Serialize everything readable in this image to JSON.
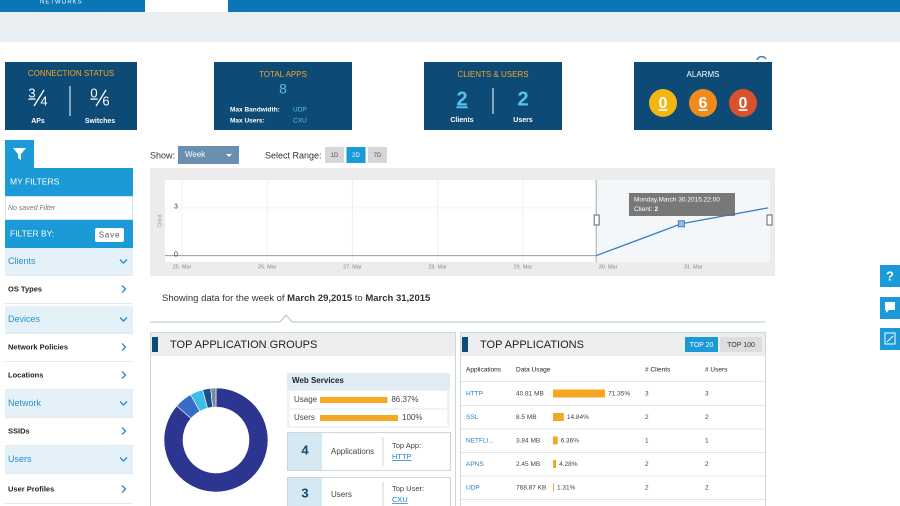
{
  "header": {
    "brand": "NETWORKS"
  },
  "tiles": {
    "connection_status": {
      "title": "CONNECTION STATUS",
      "aps": {
        "up": "3",
        "total": "4",
        "label": "APs"
      },
      "switches": {
        "up": "0",
        "total": "6",
        "label": "Switches"
      }
    },
    "total_apps": {
      "title": "TOTAL APPS",
      "count": "8",
      "max_bandwidth_label": "Max Bandwidth:",
      "max_bandwidth": "UDP",
      "max_users_label": "Max Users:",
      "max_users": "CXU"
    },
    "clients_users": {
      "title": "CLIENTS & USERS",
      "clients": "2",
      "clients_label": "Clients",
      "users": "2",
      "users_label": "Users"
    },
    "alarms": {
      "title": "ALARMS",
      "counts": [
        {
          "value": "0",
          "color": "#f4b512"
        },
        {
          "value": "6",
          "color": "#f08a1c"
        },
        {
          "value": "0",
          "color": "#d8532c"
        }
      ]
    }
  },
  "sidebar": {
    "my_filters": "MY FILTERS",
    "no_filter": "No saved Filter",
    "filter_by": "FILTER BY:",
    "save": "Save",
    "items": [
      {
        "label": "Clients",
        "group": true
      },
      {
        "label": "OS Types",
        "group": false
      },
      {
        "label": "Devices",
        "group": true
      },
      {
        "label": "Network Policies",
        "group": false
      },
      {
        "label": "Locations",
        "group": false
      },
      {
        "label": "Network",
        "group": true
      },
      {
        "label": "SSIDs",
        "group": false
      },
      {
        "label": "Users",
        "group": true
      },
      {
        "label": "User Profiles",
        "group": false
      }
    ]
  },
  "controls": {
    "show_label": "Show:",
    "period": "Week",
    "range_label": "Select Range:",
    "ranges": [
      "1D",
      "2D",
      "7D"
    ],
    "active_range": 1
  },
  "trend_chart": {
    "type": "line",
    "ylabel": "Client",
    "xlim": [
      24.8,
      31.9
    ],
    "xticks": [
      {
        "value": 25,
        "label": "25. Mar"
      },
      {
        "value": 26,
        "label": "26. Mar"
      },
      {
        "value": 27,
        "label": "27. Mar"
      },
      {
        "value": 28,
        "label": "28. Mar"
      },
      {
        "value": 29,
        "label": "29. Mar"
      },
      {
        "value": 30,
        "label": "30. Mar"
      },
      {
        "value": 31,
        "label": "31. Mar"
      }
    ],
    "ylim": [
      -0.4,
      4.75
    ],
    "yticks": [
      0,
      3
    ],
    "x": [
      29.86,
      30.86,
      31.88
    ],
    "values": [
      0,
      2,
      3
    ],
    "color": "#3a7fc8",
    "tooltip": {
      "title": "Monday,March 30.2015.22:00",
      "label": "Client:",
      "value": "2"
    }
  },
  "summary": {
    "prefix": "Showing data for the week of",
    "start": "March 29,2015",
    "middle": "to",
    "end": "March 31,2015"
  },
  "app_groups": {
    "title": "TOP APPLICATION GROUPS",
    "donut": {
      "type": "pie",
      "values": [
        86.37,
        5.5,
        4,
        2.5,
        1.63
      ],
      "colors": [
        "#2c3590",
        "#3a6cc5",
        "#3ebde8",
        "#1b4f8a",
        "#7a8a99"
      ]
    },
    "card": {
      "name": "Web Services",
      "usage_label": "Usage",
      "usage": 86.37,
      "usage_text": "86.37%",
      "users_label": "Users",
      "users": 100,
      "users_text": "100%"
    },
    "apps": {
      "count": "4",
      "label": "Applications",
      "top_label": "Top App:",
      "top": "HTTP"
    },
    "users": {
      "count": "3",
      "label": "Users",
      "top_label": "Top User:",
      "top": "CXU"
    }
  },
  "top_apps": {
    "title": "TOP APPLICATIONS",
    "buttons": [
      "TOP 20",
      "TOP 100"
    ],
    "columns": [
      "Applications",
      "Data Usage",
      "# Clients",
      "# Users"
    ],
    "rows": [
      {
        "app": "HTTP",
        "usage": "40.81 MB",
        "pct": 71.35,
        "pct_label": "71.35%",
        "clients": "3",
        "users": "3"
      },
      {
        "app": "SSL",
        "usage": "8.5 MB",
        "pct": 14.84,
        "pct_label": "14.84%",
        "clients": "2",
        "users": "2"
      },
      {
        "app": "NETFLI...",
        "usage": "3.84 MB",
        "pct": 6.36,
        "pct_label": "6.36%",
        "clients": "1",
        "users": "1"
      },
      {
        "app": "APNS",
        "usage": "2.45 MB",
        "pct": 4.28,
        "pct_label": "4.28%",
        "clients": "2",
        "users": "2"
      },
      {
        "app": "UDP",
        "usage": "768.87 KB",
        "pct": 1.31,
        "pct_label": "1.31%",
        "clients": "2",
        "users": "2"
      }
    ]
  },
  "help": {
    "icon": "?"
  }
}
